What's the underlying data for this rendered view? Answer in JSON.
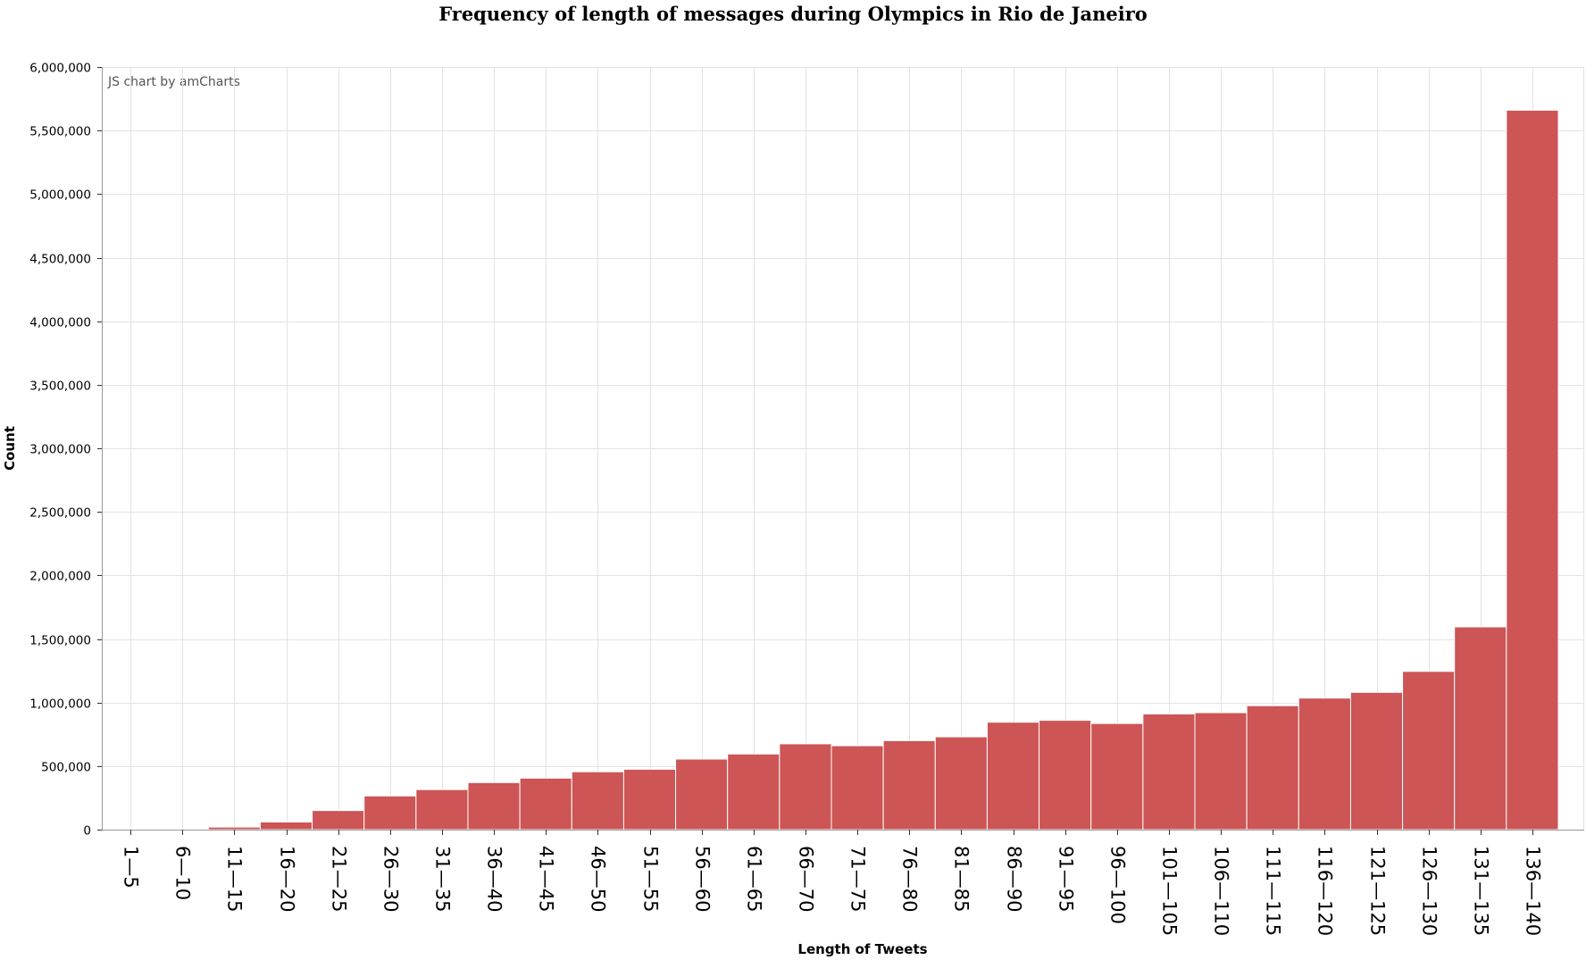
{
  "chart_data": {
    "type": "bar",
    "title": "Frequency of length of messages during Olympics in Rio de Janeiro",
    "xlabel": "Length of Tweets",
    "ylabel": "Count",
    "credit": "JS chart by amCharts",
    "bar_color": "#cd5555",
    "ylim": [
      0,
      6000000
    ],
    "y_ticks": [
      0,
      500000,
      1000000,
      1500000,
      2000000,
      2500000,
      3000000,
      3500000,
      4000000,
      4500000,
      5000000,
      5500000,
      6000000
    ],
    "y_tick_labels": [
      "0",
      "500,000",
      "1,000,000",
      "1,500,000",
      "2,000,000",
      "2,500,000",
      "3,000,000",
      "3,500,000",
      "4,000,000",
      "4,500,000",
      "5,000,000",
      "5,500,000",
      "6,000,000"
    ],
    "grid": true,
    "categories": [
      "1—5",
      "6—10",
      "11—15",
      "16—20",
      "21—25",
      "26—30",
      "31—35",
      "36—40",
      "41—45",
      "46—50",
      "51—55",
      "56—60",
      "61—65",
      "66—70",
      "71—75",
      "76—80",
      "81—85",
      "86—90",
      "91—95",
      "96—100",
      "101—105",
      "106—110",
      "111—115",
      "116—120",
      "121—125",
      "126—130",
      "131—135",
      "136—140"
    ],
    "values": [
      2000,
      5000,
      20000,
      60000,
      150000,
      265000,
      315000,
      370000,
      405000,
      455000,
      475000,
      555000,
      595000,
      675000,
      660000,
      700000,
      730000,
      845000,
      860000,
      835000,
      910000,
      920000,
      975000,
      1035000,
      1080000,
      1245000,
      1595000,
      5660000
    ]
  }
}
